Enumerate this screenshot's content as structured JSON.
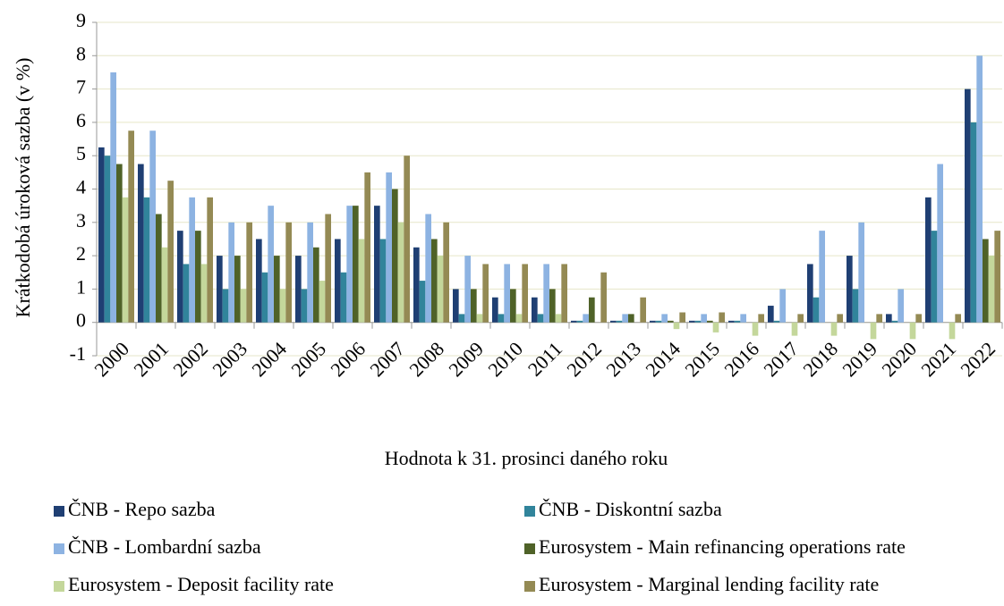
{
  "chart_data": {
    "type": "bar",
    "y_label": "Krátkodobá úroková sazba (v %)",
    "x_label": "Hodnota k 31. prosinci daného roku",
    "categories": [
      "2000",
      "2001",
      "2002",
      "2003",
      "2004",
      "2005",
      "2006",
      "2007",
      "2008",
      "2009",
      "2010",
      "2011",
      "2012",
      "2013",
      "2014",
      "2015",
      "2016",
      "2017",
      "2018",
      "2019",
      "2020",
      "2021",
      "2022"
    ],
    "series": [
      {
        "name": "ČNB - Repo sazba",
        "color": "#1f3f73",
        "values": [
          5.25,
          4.75,
          2.75,
          2,
          2.5,
          2,
          2.5,
          3.5,
          2.25,
          1,
          0.75,
          0.75,
          0.05,
          0.05,
          0.05,
          0.05,
          0.05,
          0.5,
          1.75,
          2,
          0.25,
          3.75,
          7
        ]
      },
      {
        "name": "ČNB - Diskontní sazba",
        "color": "#31849b",
        "values": [
          5,
          3.75,
          1.75,
          1,
          1.5,
          1,
          1.5,
          2.5,
          1.25,
          0.25,
          0.25,
          0.25,
          0.05,
          0.05,
          0.05,
          0.05,
          0.05,
          0.05,
          0.75,
          1,
          0.05,
          2.75,
          6
        ]
      },
      {
        "name": "ČNB - Lombardní sazba",
        "color": "#8db3e2",
        "values": [
          7.5,
          5.75,
          3.75,
          3,
          3.5,
          3,
          3.5,
          4.5,
          3.25,
          2,
          1.75,
          1.75,
          0.25,
          0.25,
          0.25,
          0.25,
          0.25,
          1,
          2.75,
          3,
          1,
          4.75,
          8
        ]
      },
      {
        "name": "Eurosystem - Main refinancing operations rate",
        "color": "#4f6228",
        "values": [
          4.75,
          3.25,
          2.75,
          2,
          2,
          2.25,
          3.5,
          4,
          2.5,
          1,
          1,
          1,
          0.75,
          0.25,
          0.05,
          0.05,
          0,
          0,
          0,
          0,
          0,
          0,
          2.5
        ]
      },
      {
        "name": "Eurosystem - Deposit facility rate",
        "color": "#c4d79b",
        "values": [
          3.75,
          2.25,
          1.75,
          1,
          1,
          1.25,
          2.5,
          3,
          2,
          0.25,
          0.25,
          0.25,
          0,
          0,
          -0.2,
          -0.3,
          -0.4,
          -0.4,
          -0.4,
          -0.5,
          -0.5,
          -0.5,
          2
        ]
      },
      {
        "name": "Eurosystem - Marginal lending facility rate",
        "color": "#948a54",
        "values": [
          5.75,
          4.25,
          3.75,
          3,
          3,
          3.25,
          4.5,
          5,
          3,
          1.75,
          1.75,
          1.75,
          1.5,
          0.75,
          0.3,
          0.3,
          0.25,
          0.25,
          0.25,
          0.25,
          0.25,
          0.25,
          2.75
        ]
      }
    ],
    "ylim": [
      -1,
      9
    ],
    "yticks": [
      -1,
      0,
      1,
      2,
      3,
      4,
      5,
      6,
      7,
      8,
      9
    ],
    "grid": true
  }
}
